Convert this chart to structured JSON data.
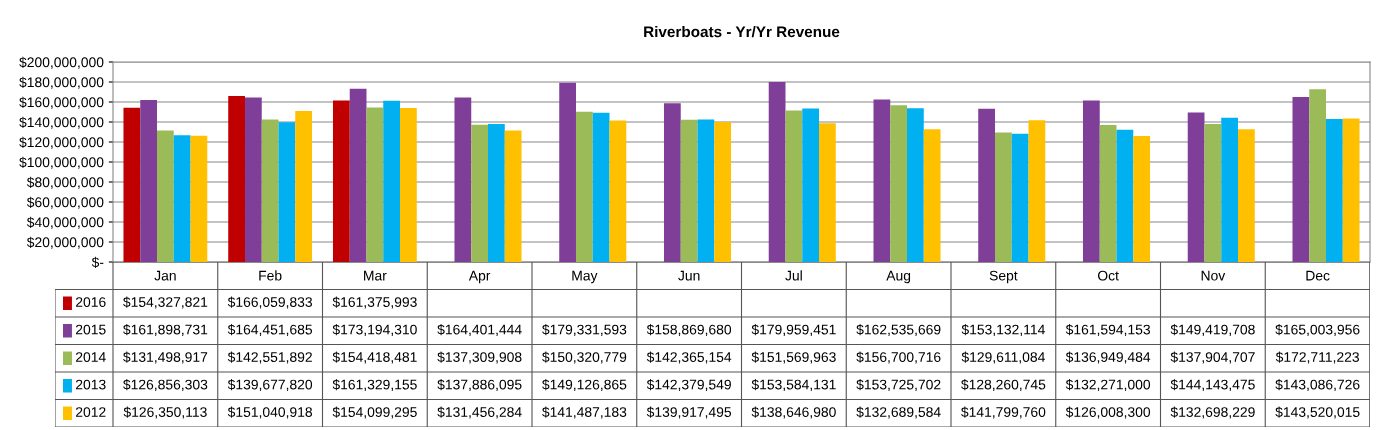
{
  "chart_data": {
    "type": "bar",
    "title": "Riverboats - Yr/Yr Revenue",
    "categories": [
      "Jan",
      "Feb",
      "Mar",
      "Apr",
      "May",
      "Jun",
      "Jul",
      "Aug",
      "Sept",
      "Oct",
      "Nov",
      "Dec"
    ],
    "series": [
      {
        "name": "2016",
        "color": "#c00000",
        "values": [
          154327821,
          166059833,
          161375993,
          null,
          null,
          null,
          null,
          null,
          null,
          null,
          null,
          null
        ],
        "value_labels": [
          "$154,327,821",
          "$166,059,833",
          "$161,375,993",
          null,
          null,
          null,
          null,
          null,
          null,
          null,
          null,
          null
        ]
      },
      {
        "name": "2015",
        "color": "#7f3f98",
        "values": [
          161898731,
          164451685,
          173194310,
          164401444,
          179331593,
          158869680,
          179959451,
          162535669,
          153132114,
          161594153,
          149419708,
          165003956
        ],
        "value_labels": [
          "$161,898,731",
          "$164,451,685",
          "$173,194,310",
          "$164,401,444",
          "$179,331,593",
          "$158,869,680",
          "$179,959,451",
          "$162,535,669",
          "$153,132,114",
          "$161,594,153",
          "$149,419,708",
          "$165,003,956"
        ]
      },
      {
        "name": "2014",
        "color": "#9bbb59",
        "values": [
          131498917,
          142551892,
          154418481,
          137309908,
          150320779,
          142365154,
          151569963,
          156700716,
          129611084,
          136949484,
          137904707,
          172711223
        ],
        "value_labels": [
          "$131,498,917",
          "$142,551,892",
          "$154,418,481",
          "$137,309,908",
          "$150,320,779",
          "$142,365,154",
          "$151,569,963",
          "$156,700,716",
          "$129,611,084",
          "$136,949,484",
          "$137,904,707",
          "$172,711,223"
        ]
      },
      {
        "name": "2013",
        "color": "#00b0f0",
        "values": [
          126856303,
          139677820,
          161329155,
          137886095,
          149126865,
          142379549,
          153584131,
          153725702,
          128260745,
          132271000,
          144143475,
          143086726
        ],
        "value_labels": [
          "$126,856,303",
          "$139,677,820",
          "$161,329,155",
          "$137,886,095",
          "$149,126,865",
          "$142,379,549",
          "$153,584,131",
          "$153,725,702",
          "$128,260,745",
          "$132,271,000",
          "$144,143,475",
          "$143,086,726"
        ]
      },
      {
        "name": "2012",
        "color": "#ffc000",
        "values": [
          126350113,
          151040918,
          154099295,
          131456284,
          141487183,
          139917495,
          138646980,
          132689584,
          141799760,
          126008300,
          132698229,
          143520015
        ],
        "value_labels": [
          "$126,350,113",
          "$151,040,918",
          "$154,099,295",
          "$131,456,284",
          "$141,487,183",
          "$139,917,495",
          "$138,646,980",
          "$132,689,584",
          "$141,799,760",
          "$126,008,300",
          "$132,698,229",
          "$143,520,015"
        ]
      }
    ],
    "ylim": [
      0,
      200000000
    ],
    "yticks": [
      {
        "value": 0,
        "label": "$-"
      },
      {
        "value": 20000000,
        "label": "$20,000,000"
      },
      {
        "value": 40000000,
        "label": "$40,000,000"
      },
      {
        "value": 60000000,
        "label": "$60,000,000"
      },
      {
        "value": 80000000,
        "label": "$80,000,000"
      },
      {
        "value": 100000000,
        "label": "$100,000,000"
      },
      {
        "value": 120000000,
        "label": "$120,000,000"
      },
      {
        "value": 140000000,
        "label": "$140,000,000"
      },
      {
        "value": 160000000,
        "label": "$160,000,000"
      },
      {
        "value": 180000000,
        "label": "$180,000,000"
      },
      {
        "value": 200000000,
        "label": "$200,000,000"
      }
    ],
    "grid": "y",
    "legend": "left"
  }
}
